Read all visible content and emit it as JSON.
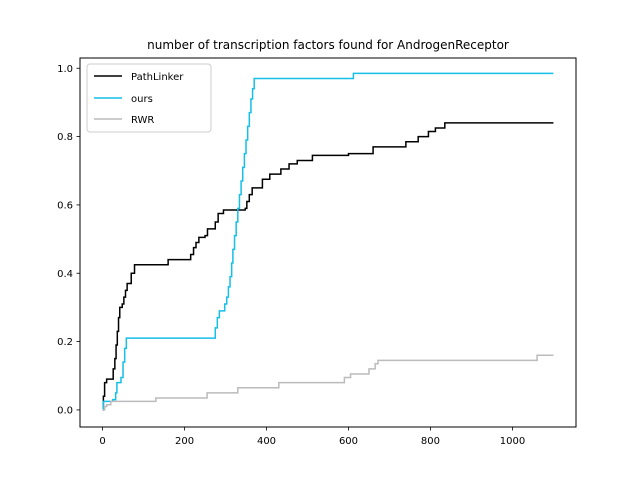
{
  "chart_data": {
    "type": "line",
    "title": "number of transcription factors found for AndrogenReceptor",
    "xlabel": "",
    "ylabel": "",
    "xlim": [
      -55,
      1155
    ],
    "ylim": [
      -0.05,
      1.03
    ],
    "xticks": [
      0,
      200,
      400,
      600,
      800,
      1000
    ],
    "yticks": [
      0.0,
      0.2,
      0.4,
      0.6,
      0.8,
      1.0
    ],
    "xtick_labels": [
      "0",
      "200",
      "400",
      "600",
      "800",
      "1000"
    ],
    "ytick_labels": [
      "0.0",
      "0.2",
      "0.4",
      "0.6",
      "0.8",
      "1.0"
    ],
    "grid": false,
    "legend": "top-left",
    "series": [
      {
        "name": "PathLinker",
        "color": "#000000",
        "step": true,
        "points": [
          [
            0,
            0.0
          ],
          [
            2,
            0.04
          ],
          [
            5,
            0.08
          ],
          [
            10,
            0.09
          ],
          [
            22,
            0.09
          ],
          [
            26,
            0.12
          ],
          [
            30,
            0.15
          ],
          [
            33,
            0.19
          ],
          [
            36,
            0.23
          ],
          [
            39,
            0.27
          ],
          [
            42,
            0.3
          ],
          [
            48,
            0.31
          ],
          [
            52,
            0.33
          ],
          [
            56,
            0.35
          ],
          [
            60,
            0.37
          ],
          [
            70,
            0.4
          ],
          [
            78,
            0.425
          ],
          [
            155,
            0.425
          ],
          [
            160,
            0.44
          ],
          [
            210,
            0.44
          ],
          [
            215,
            0.455
          ],
          [
            222,
            0.475
          ],
          [
            228,
            0.49
          ],
          [
            235,
            0.505
          ],
          [
            250,
            0.51
          ],
          [
            256,
            0.53
          ],
          [
            275,
            0.55
          ],
          [
            282,
            0.575
          ],
          [
            295,
            0.585
          ],
          [
            348,
            0.59
          ],
          [
            352,
            0.61
          ],
          [
            358,
            0.63
          ],
          [
            365,
            0.65
          ],
          [
            390,
            0.675
          ],
          [
            408,
            0.69
          ],
          [
            435,
            0.705
          ],
          [
            455,
            0.72
          ],
          [
            475,
            0.73
          ],
          [
            512,
            0.745
          ],
          [
            600,
            0.75
          ],
          [
            660,
            0.77
          ],
          [
            740,
            0.785
          ],
          [
            770,
            0.8
          ],
          [
            795,
            0.815
          ],
          [
            812,
            0.825
          ],
          [
            835,
            0.84
          ],
          [
            1100,
            0.84
          ]
        ]
      },
      {
        "name": "ours",
        "color": "#14bfe8",
        "step": true,
        "points": [
          [
            0,
            0.0
          ],
          [
            2,
            0.025
          ],
          [
            25,
            0.03
          ],
          [
            32,
            0.05
          ],
          [
            35,
            0.08
          ],
          [
            45,
            0.095
          ],
          [
            50,
            0.14
          ],
          [
            54,
            0.18
          ],
          [
            58,
            0.21
          ],
          [
            270,
            0.21
          ],
          [
            275,
            0.24
          ],
          [
            280,
            0.27
          ],
          [
            285,
            0.29
          ],
          [
            298,
            0.31
          ],
          [
            303,
            0.33
          ],
          [
            307,
            0.36
          ],
          [
            311,
            0.39
          ],
          [
            315,
            0.43
          ],
          [
            318,
            0.47
          ],
          [
            322,
            0.51
          ],
          [
            326,
            0.55
          ],
          [
            330,
            0.59
          ],
          [
            334,
            0.63
          ],
          [
            338,
            0.67
          ],
          [
            342,
            0.71
          ],
          [
            346,
            0.75
          ],
          [
            350,
            0.79
          ],
          [
            354,
            0.83
          ],
          [
            358,
            0.87
          ],
          [
            362,
            0.91
          ],
          [
            366,
            0.94
          ],
          [
            370,
            0.97
          ],
          [
            612,
            0.985
          ],
          [
            1100,
            0.985
          ]
        ]
      },
      {
        "name": "RWR",
        "color": "#bbbbbb",
        "step": true,
        "points": [
          [
            0,
            0.0
          ],
          [
            5,
            0.01
          ],
          [
            10,
            0.015
          ],
          [
            20,
            0.025
          ],
          [
            130,
            0.035
          ],
          [
            255,
            0.05
          ],
          [
            330,
            0.065
          ],
          [
            430,
            0.08
          ],
          [
            590,
            0.095
          ],
          [
            605,
            0.105
          ],
          [
            650,
            0.12
          ],
          [
            665,
            0.135
          ],
          [
            672,
            0.145
          ],
          [
            1060,
            0.16
          ],
          [
            1100,
            0.16
          ]
        ]
      }
    ]
  }
}
